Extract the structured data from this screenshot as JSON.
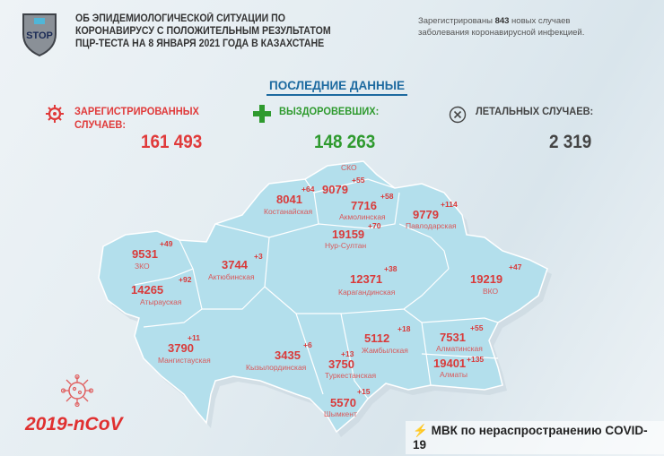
{
  "header": {
    "logo_text": "STOP",
    "title_lines": [
      "ОБ ЭПИДЕМИОЛОГИЧЕСКОЙ СИТУАЦИИ ПО",
      "КОРОНАВИРУСУ С ПОЛОЖИТЕЛЬНЫМ РЕЗУЛЬТАТОМ",
      "ПЦР-ТЕСТА НА 8 ЯНВАРЯ 2021 ГОДА В КАЗАХСТАНЕ"
    ],
    "note_prefix": "Зарегистрированы ",
    "note_count": "843",
    "note_suffix": " новых случаев",
    "note_line2": "заболевания коронавирусной инфекцией."
  },
  "section_title": "ПОСЛЕДНИЕ ДАННЫЕ",
  "stats": {
    "registered": {
      "label1": "ЗАРЕГИСТРИРОВАННЫХ",
      "label2": "СЛУЧАЕВ:",
      "value": "161 493",
      "icon": "virus-icon",
      "color": "#e03a3a"
    },
    "recovered": {
      "label": "ВЫЗДОРОВЕВШИХ:",
      "value": "148 263",
      "icon": "plus-icon",
      "color": "#2e9a2e"
    },
    "deaths": {
      "label": "ЛЕТАЛЬНЫХ СЛУЧАЕВ:",
      "value": "2 319",
      "icon": "x-circle-icon",
      "color": "#444444"
    }
  },
  "regions": [
    {
      "name": "СКО",
      "total": "9079",
      "new": "+55"
    },
    {
      "name": "Костанайская",
      "total": "8041",
      "new": "+64"
    },
    {
      "name": "Акмолинская",
      "total": "7716",
      "new": "+58"
    },
    {
      "name": "Павлодарская",
      "total": "9779",
      "new": "+114"
    },
    {
      "name": "Нур-Султан",
      "total": "19159",
      "new": "+70"
    },
    {
      "name": "ЗКО",
      "total": "9531",
      "new": "+49"
    },
    {
      "name": "Актюбинская",
      "total": "3744",
      "new": "+3"
    },
    {
      "name": "Карагандинская",
      "total": "12371",
      "new": "+38"
    },
    {
      "name": "ВКО",
      "total": "19219",
      "new": "+47"
    },
    {
      "name": "Атырауская",
      "total": "14265",
      "new": "+92"
    },
    {
      "name": "Кызылординская",
      "total": "3435",
      "new": "+6"
    },
    {
      "name": "Мангистауская",
      "total": "3790",
      "new": "+11"
    },
    {
      "name": "Жамбылская",
      "total": "5112",
      "new": "+18"
    },
    {
      "name": "Туркестанская",
      "total": "3750",
      "new": "+13"
    },
    {
      "name": "Алматинская",
      "total": "7531",
      "new": "+55"
    },
    {
      "name": "Алматы",
      "total": "19401",
      "new": "+135"
    },
    {
      "name": "Шымкент",
      "total": "5570",
      "new": "+15"
    }
  ],
  "footer": {
    "ncov": "2019-nCoV",
    "mvk": "МВК по нераспространению COVID-19"
  },
  "colors": {
    "map_fill": "#b3dfec",
    "accent_blue": "#1d6aa0"
  }
}
